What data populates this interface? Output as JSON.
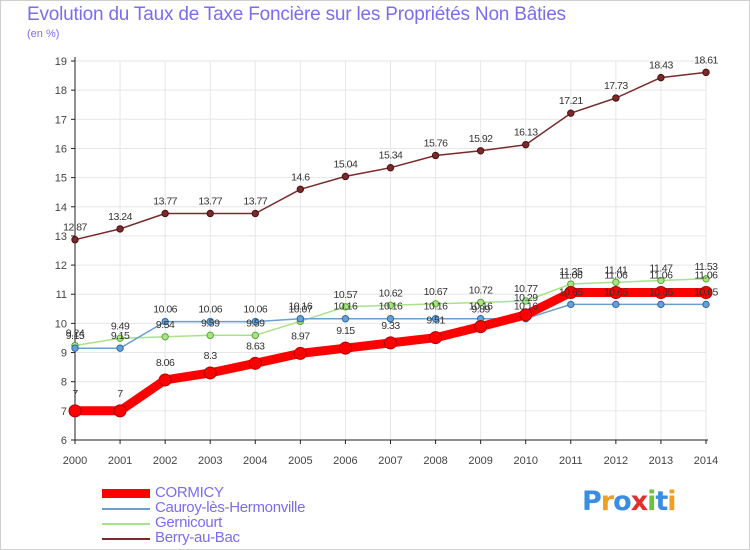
{
  "header": {
    "title": "Evolution du Taux de Taxe Foncière sur les Propriétés Non Bâties",
    "subtitle": "(en %)"
  },
  "colors": {
    "title": "#7a6df0",
    "grid": "#e6e6e6",
    "axis": "#222222",
    "label": "#444444"
  },
  "chart_data": {
    "type": "line",
    "x": [
      2000,
      2001,
      2002,
      2003,
      2004,
      2005,
      2006,
      2007,
      2008,
      2009,
      2010,
      2011,
      2012,
      2013,
      2014
    ],
    "ylim": [
      6,
      19
    ],
    "yticks": [
      6,
      7,
      8,
      9,
      10,
      11,
      12,
      13,
      14,
      15,
      16,
      17,
      18,
      19
    ],
    "grid": true,
    "legend_placement": "bottom-left",
    "series": [
      {
        "name": "CORMICY",
        "color": "#ff0000",
        "values": [
          7,
          7,
          8.06,
          8.3,
          8.63,
          8.97,
          9.15,
          9.33,
          9.51,
          9.89,
          10.29,
          11.06,
          11.06,
          11.06,
          11.06
        ],
        "labels": [
          "7",
          "7",
          "8.06",
          "8.3",
          "8.63",
          "8.97",
          "9.15",
          "9.33",
          "9.51",
          "9.89",
          "10.29",
          "11.06",
          "11.06",
          "11.06",
          "11.06"
        ]
      },
      {
        "name": "Cauroy-lès-Hermonville",
        "color": "#6aa0d0",
        "values": [
          9.15,
          9.15,
          10.06,
          10.06,
          10.06,
          10.16,
          10.16,
          10.16,
          10.16,
          10.16,
          10.16,
          10.65,
          10.65,
          10.65,
          10.65
        ],
        "labels": [
          "9.15",
          "9.15",
          "10.06",
          "10.06",
          "10.06",
          "10.16",
          "10.16",
          "10.16",
          "10.16",
          "10.16",
          "10.16",
          "10.65",
          "10.65",
          "10.65",
          "10.65"
        ]
      },
      {
        "name": "Gernicourt",
        "color": "#a8e28a",
        "values": [
          9.24,
          9.49,
          9.54,
          9.59,
          9.59,
          10.07,
          10.57,
          10.62,
          10.67,
          10.72,
          10.77,
          11.35,
          11.41,
          11.47,
          11.53
        ],
        "labels": [
          "9.24",
          "9.49",
          "9.54",
          "9.59",
          "9.59",
          "10.07",
          "10.57",
          "10.62",
          "10.67",
          "10.72",
          "10.77",
          "11.35",
          "11.41",
          "11.47",
          "11.53"
        ]
      },
      {
        "name": "Berry-au-Bac",
        "color": "#7a2a2a",
        "values": [
          12.87,
          13.24,
          13.77,
          13.77,
          13.77,
          14.6,
          15.04,
          15.34,
          15.76,
          15.92,
          16.13,
          17.21,
          17.73,
          18.43,
          18.61
        ],
        "labels": [
          "12.87",
          "13.24",
          "13.77",
          "13.77",
          "13.77",
          "14.6",
          "15.04",
          "15.34",
          "15.76",
          "15.92",
          "16.13",
          "17.21",
          "17.73",
          "18.43",
          "18.61"
        ]
      }
    ]
  },
  "logo": {
    "letters": [
      "P",
      "r",
      "o",
      "x",
      "i",
      "t",
      "i"
    ],
    "colors": [
      "#3a8de0",
      "#f0a020",
      "#3a8de0",
      "#e03030",
      "#70c040",
      "#3a8de0",
      "#f0a020"
    ]
  }
}
